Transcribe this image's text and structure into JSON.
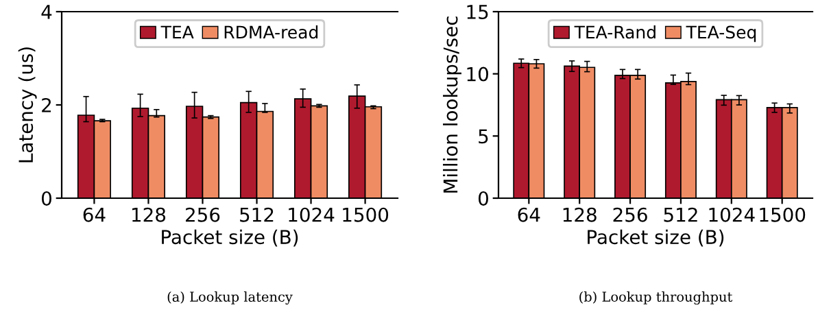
{
  "chart_data": [
    {
      "type": "bar",
      "categories": [
        "64",
        "128",
        "256",
        "512",
        "1024",
        "1500"
      ],
      "xlabel": "Packet size (B)",
      "ylabel": "Latency (us)",
      "ylim": [
        0,
        4
      ],
      "yticks": [
        0,
        2,
        4
      ],
      "legend": "top",
      "grid": false,
      "annotations": [
        "(a) Lookup latency"
      ],
      "series": [
        {
          "name": "TEA",
          "color": "#b01a2e",
          "values": [
            1.78,
            1.93,
            1.97,
            2.05,
            2.13,
            2.19
          ],
          "errors": [
            [
              1.64,
              2.18
            ],
            [
              1.75,
              2.23
            ],
            [
              1.72,
              2.27
            ],
            [
              1.84,
              2.29
            ],
            [
              1.95,
              2.34
            ],
            [
              1.93,
              2.43
            ]
          ]
        },
        {
          "name": "RDMA-read",
          "color": "#f08c64",
          "values": [
            1.66,
            1.77,
            1.74,
            1.86,
            1.98,
            1.96
          ],
          "errors": [
            [
              1.64,
              1.69
            ],
            [
              1.74,
              1.9
            ],
            [
              1.71,
              1.77
            ],
            [
              1.84,
              2.03
            ],
            [
              1.95,
              2.01
            ],
            [
              1.92,
              1.98
            ]
          ]
        }
      ]
    },
    {
      "type": "bar",
      "categories": [
        "64",
        "128",
        "256",
        "512",
        "1024",
        "1500"
      ],
      "xlabel": "Packet size (B)",
      "ylabel": "Million lookups/sec",
      "ylim": [
        0,
        15
      ],
      "yticks": [
        0,
        5,
        10,
        15
      ],
      "legend": "top",
      "grid": false,
      "annotations": [
        "(b) Lookup throughput"
      ],
      "series": [
        {
          "name": "TEA-Rand",
          "color": "#b01a2e",
          "values": [
            10.85,
            10.62,
            9.88,
            9.27,
            7.92,
            7.29
          ],
          "errors": [
            [
              10.5,
              11.19
            ],
            [
              10.19,
              11.04
            ],
            [
              9.62,
              10.35
            ],
            [
              9.15,
              9.9
            ],
            [
              7.48,
              8.27
            ],
            [
              6.9,
              7.65
            ]
          ]
        },
        {
          "name": "TEA-Seq",
          "color": "#f08c64",
          "values": [
            10.81,
            10.52,
            9.88,
            9.38,
            7.92,
            7.29
          ],
          "errors": [
            [
              10.46,
              11.15
            ],
            [
              10.17,
              11.0
            ],
            [
              9.58,
              10.35
            ],
            [
              9.13,
              10.06
            ],
            [
              7.5,
              8.25
            ],
            [
              6.85,
              7.58
            ]
          ]
        }
      ]
    }
  ]
}
